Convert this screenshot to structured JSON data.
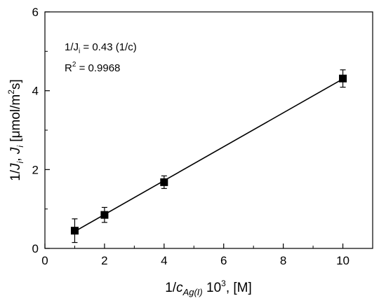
{
  "chart_data": {
    "type": "scatter",
    "x": [
      1,
      2,
      4,
      10
    ],
    "y": [
      0.45,
      0.85,
      1.68,
      4.31
    ],
    "y_error": [
      0.3,
      0.19,
      0.16,
      0.22
    ],
    "fit_line": {
      "x": [
        1,
        10
      ],
      "y": [
        0.43,
        4.3
      ]
    },
    "xlim": [
      0,
      11
    ],
    "ylim": [
      0,
      6
    ],
    "xticks": [
      "0",
      "2",
      "4",
      "6",
      "8",
      "10"
    ],
    "yticks": [
      "0",
      "2",
      "4",
      "6"
    ],
    "xlabel": {
      "prefix": "1/",
      "var": "c",
      "sub": "Ag(I)",
      "tail": " 10",
      "sup": "3",
      "unit": ", [M]"
    },
    "ylabel": {
      "prefix": "1/",
      "var1": "J",
      "sub1": "i",
      "sep": ", ",
      "var2": "J",
      "sub2": "i",
      "unit": " [μmol/m",
      "sup": "2",
      "unit2": "s]"
    },
    "annotations": {
      "eq": {
        "prefix": "1/J",
        "sub": "i",
        "rest": " = 0.43 (1/c)"
      },
      "r2": {
        "base": "R",
        "sup": "2",
        "rest": " = 0.9968"
      }
    },
    "grid": false,
    "colors": {
      "marker": "#000000",
      "line": "#000000",
      "axes": "#000000"
    }
  }
}
